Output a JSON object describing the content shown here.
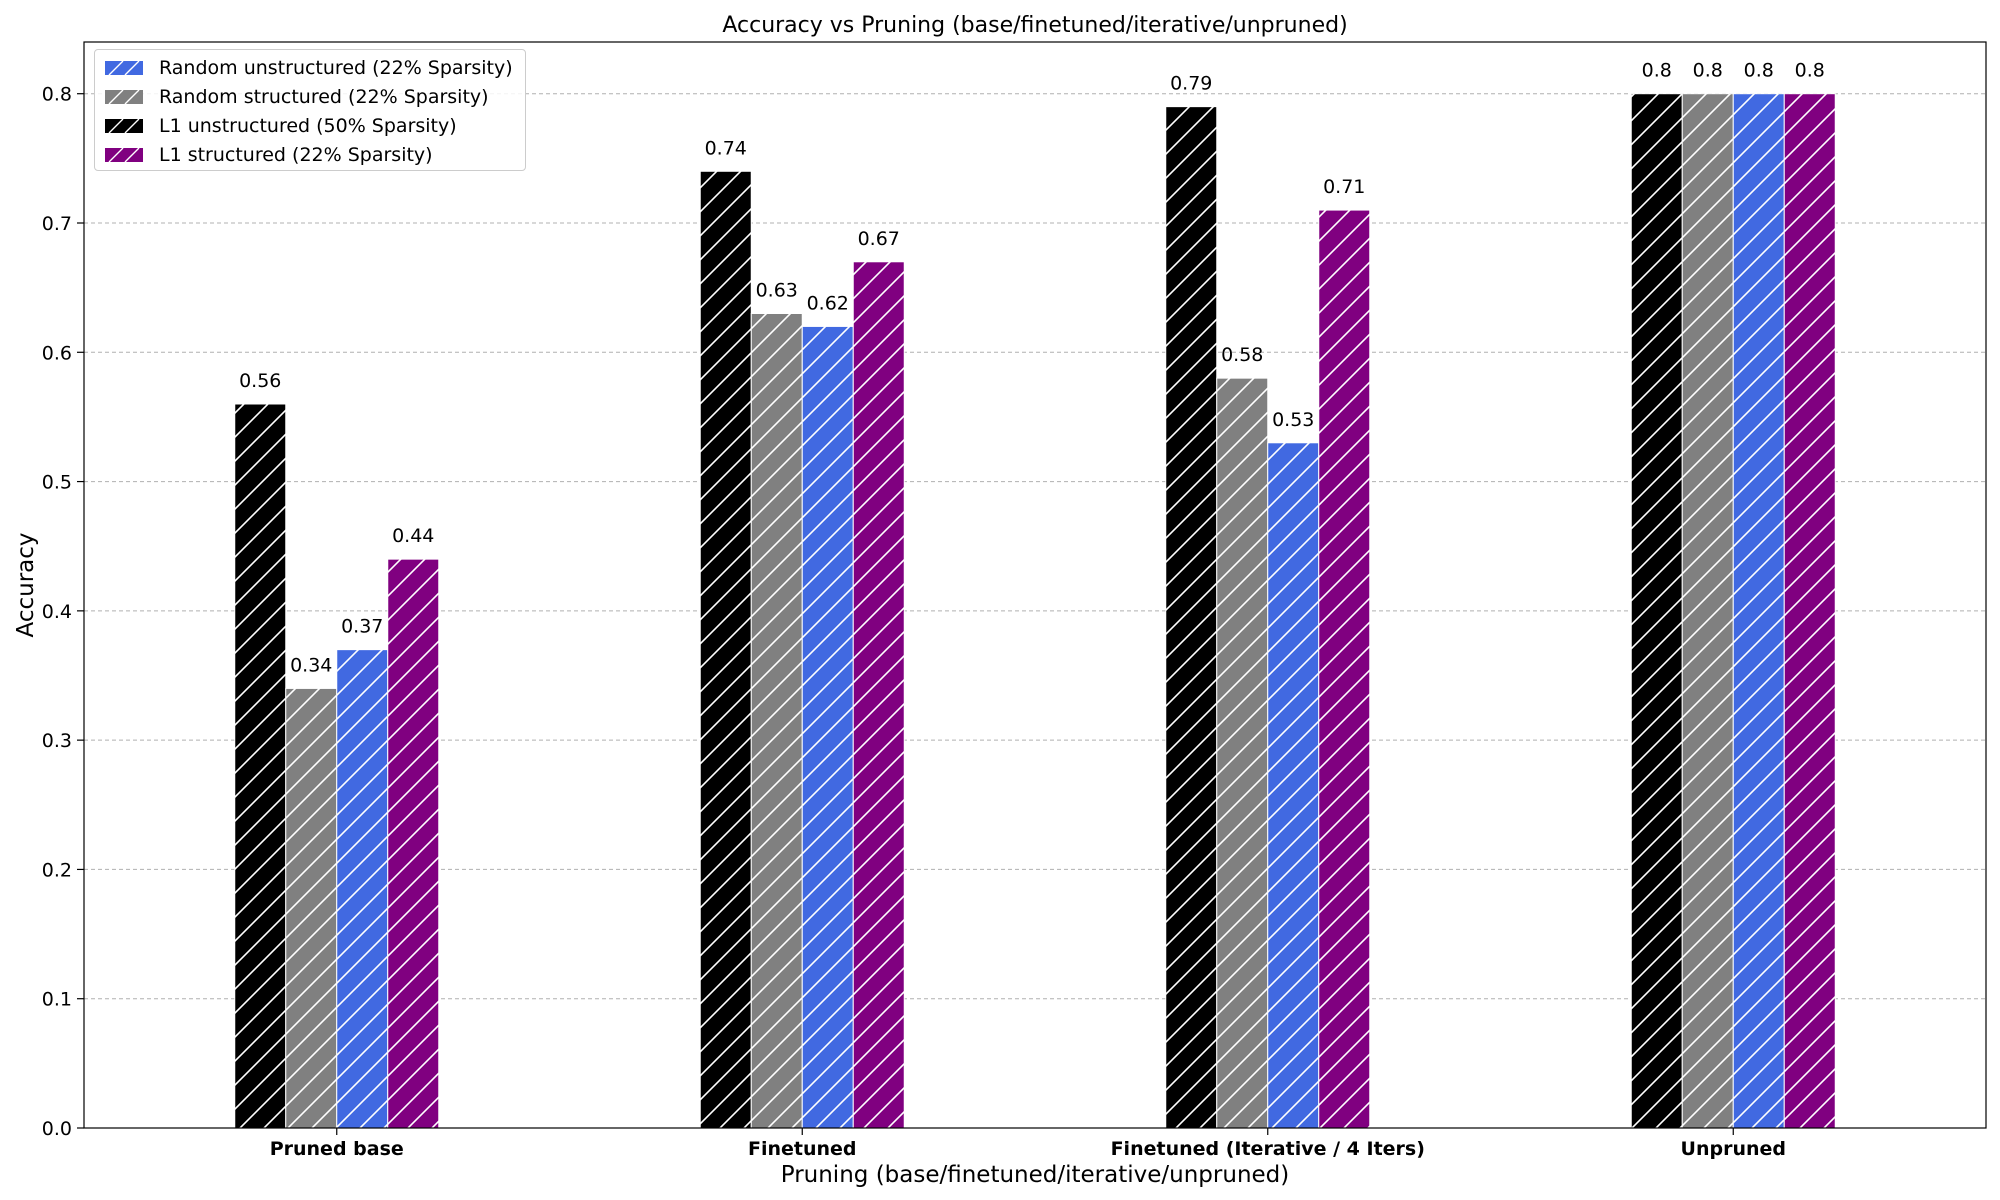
{
  "chart_data": {
    "type": "bar",
    "title": "Accuracy vs Pruning (base/finetuned/iterative/unpruned)",
    "xlabel": "Pruning (base/finetuned/iterative/unpruned)",
    "ylabel": "Accuracy",
    "ylim": [
      0,
      0.84
    ],
    "yticks": [
      "0.0",
      "0.1",
      "0.2",
      "0.3",
      "0.4",
      "0.5",
      "0.6",
      "0.7",
      "0.8"
    ],
    "grid": "y-dashed",
    "legend_position": "top-left",
    "categories": [
      "Pruned base",
      "Finetuned",
      "Finetuned (Iterative / 4 Iters)",
      "Unpruned"
    ],
    "bar_order": [
      "L1 unstructured (50% Sparsity)",
      "Random structured (22% Sparsity)",
      "Random unstructured (22% Sparsity)",
      "L1 structured (22% Sparsity)"
    ],
    "series": [
      {
        "name": "Random unstructured (22% Sparsity)",
        "color": "#4169e1",
        "values": [
          0.37,
          0.62,
          0.53,
          0.8
        ],
        "labels": [
          "0.37",
          "0.62",
          "0.53",
          "0.8"
        ]
      },
      {
        "name": "Random structured (22% Sparsity)",
        "color": "#808080",
        "values": [
          0.34,
          0.63,
          0.58,
          0.8
        ],
        "labels": [
          "0.34",
          "0.63",
          "0.58",
          "0.8"
        ]
      },
      {
        "name": "L1 unstructured (50% Sparsity)",
        "color": "#000000",
        "values": [
          0.56,
          0.74,
          0.79,
          0.8
        ],
        "labels": [
          "0.56",
          "0.74",
          "0.79",
          "0.8"
        ]
      },
      {
        "name": "L1 structured (22% Sparsity)",
        "color": "#800080",
        "values": [
          0.44,
          0.67,
          0.71,
          0.8
        ],
        "labels": [
          "0.44",
          "0.67",
          "0.71",
          "0.8"
        ]
      }
    ],
    "hatch": "diagonal"
  }
}
